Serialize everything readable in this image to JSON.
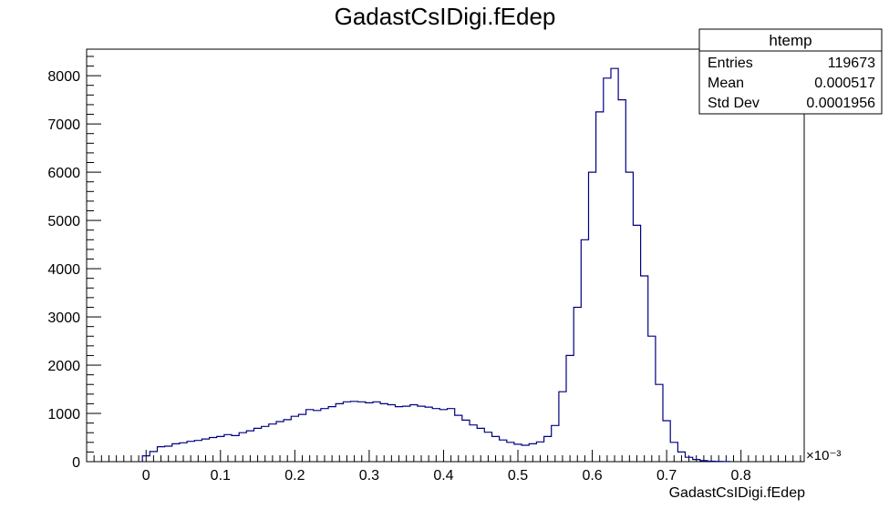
{
  "chart_data": {
    "type": "bar",
    "histogram": true,
    "title": "GadastCsIDigi.fEdep",
    "xlabel": "GadastCsIDigi.fEdep",
    "ylabel": "",
    "x_exponent_label": "×10⁻³",
    "xlim": [
      -0.08,
      0.885
    ],
    "ylim": [
      0,
      8550
    ],
    "x_ticks": [
      0,
      0.1,
      0.2,
      0.3,
      0.4,
      0.5,
      0.6,
      0.7,
      0.8
    ],
    "x_tick_labels": [
      "0",
      "0.1",
      "0.2",
      "0.3",
      "0.4",
      "0.5",
      "0.6",
      "0.7",
      "0.8"
    ],
    "y_ticks": [
      0,
      1000,
      2000,
      3000,
      4000,
      5000,
      6000,
      7000,
      8000
    ],
    "y_tick_labels": [
      "0",
      "1000",
      "2000",
      "3000",
      "4000",
      "5000",
      "6000",
      "7000",
      "8000"
    ],
    "grid": false,
    "line_color": "#000080",
    "bin_width": 0.01,
    "bin_edges_start": -0.005,
    "values": [
      120,
      210,
      310,
      320,
      370,
      390,
      420,
      440,
      470,
      500,
      520,
      560,
      540,
      600,
      640,
      690,
      730,
      780,
      830,
      870,
      940,
      980,
      1080,
      1060,
      1100,
      1140,
      1200,
      1240,
      1250,
      1240,
      1220,
      1240,
      1200,
      1180,
      1140,
      1150,
      1180,
      1150,
      1130,
      1100,
      1080,
      1100,
      960,
      860,
      760,
      690,
      610,
      520,
      450,
      400,
      360,
      340,
      370,
      410,
      520,
      750,
      1450,
      2200,
      3200,
      4600,
      6000,
      7250,
      7950,
      8150,
      7500,
      6000,
      4900,
      3850,
      2600,
      1600,
      850,
      400,
      200,
      90,
      45,
      20,
      10,
      5,
      2
    ],
    "stats_box": {
      "title": "htemp",
      "rows": [
        {
          "label": "Entries",
          "value": "119673"
        },
        {
          "label": "Mean",
          "value": "0.000517"
        },
        {
          "label": "Std Dev",
          "value": "0.0001956"
        }
      ]
    }
  }
}
